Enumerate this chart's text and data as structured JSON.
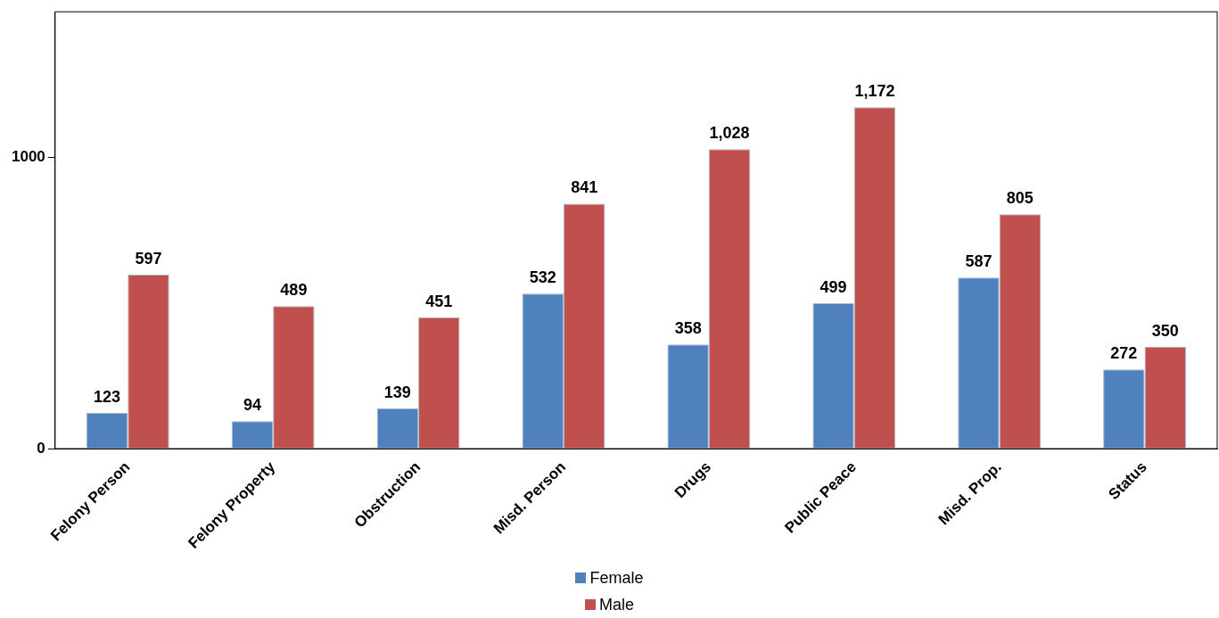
{
  "chart_data": {
    "type": "bar",
    "categories": [
      "Felony Person",
      "Felony Property",
      "Obstruction",
      "Misd. Person",
      "Drugs",
      "Public Peace",
      "Misd. Prop.",
      "Status"
    ],
    "series": [
      {
        "name": "Female",
        "color": "#4f81bd",
        "values": [
          123,
          94,
          139,
          532,
          358,
          499,
          587,
          272
        ],
        "value_labels": [
          "123",
          "94",
          "139",
          "532",
          "358",
          "499",
          "587",
          "272"
        ]
      },
      {
        "name": "Male",
        "color": "#c0504d",
        "values": [
          597,
          489,
          451,
          841,
          1028,
          1172,
          805,
          350
        ],
        "value_labels": [
          "597",
          "489",
          "451",
          "841",
          "1,028",
          "1,172",
          "805",
          "350"
        ]
      }
    ],
    "ylim": [
      0,
      1500
    ],
    "yticks": [
      0,
      1000
    ],
    "grid": false,
    "legend": "bottom"
  }
}
